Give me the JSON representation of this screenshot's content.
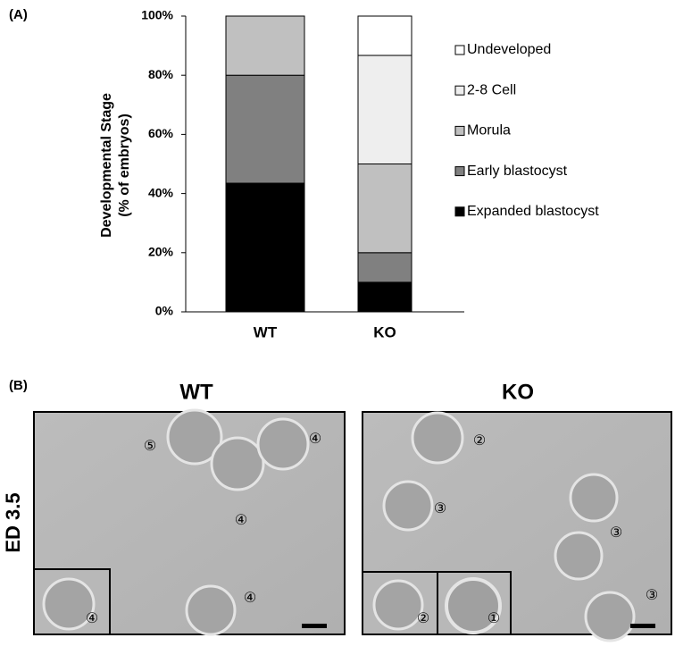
{
  "chart_data": {
    "type": "stacked_bar",
    "ylabel": [
      "Developmental Stage",
      "(% of embryos)"
    ],
    "categories": [
      "WT",
      "KO"
    ],
    "series": [
      {
        "name": "Expanded blastocyst",
        "color": "#000000",
        "values": [
          43.5,
          10
        ]
      },
      {
        "name": "Early blastocyst",
        "color": "#808080",
        "values": [
          36.5,
          10
        ]
      },
      {
        "name": "Morula",
        "color": "#c0c0c0",
        "values": [
          20,
          30
        ]
      },
      {
        "name": "2-8 Cell",
        "color": "#eeeeee",
        "values": [
          0,
          36.7
        ]
      },
      {
        "name": "Undeveloped",
        "color": "#ffffff",
        "values": [
          0,
          13.3
        ]
      }
    ],
    "ylim": [
      0,
      100
    ],
    "yticks": [
      {
        "value": 0,
        "label": "0%"
      },
      {
        "value": 20,
        "label": "20%"
      },
      {
        "value": 40,
        "label": "40%"
      },
      {
        "value": 60,
        "label": "60%"
      },
      {
        "value": 80,
        "label": "80%"
      },
      {
        "value": 100,
        "label": "100%"
      }
    ],
    "legend": "right"
  },
  "panel_labels": [
    "(A)",
    "(B)"
  ],
  "panel_b": {
    "row_label": "ED 3.5",
    "columns": [
      "WT",
      "KO"
    ],
    "wt_stages": [
      "⑤",
      "④",
      "④",
      "④",
      "④"
    ],
    "ko_stages": [
      "②",
      "③",
      "③",
      "③",
      "②",
      "①"
    ]
  }
}
